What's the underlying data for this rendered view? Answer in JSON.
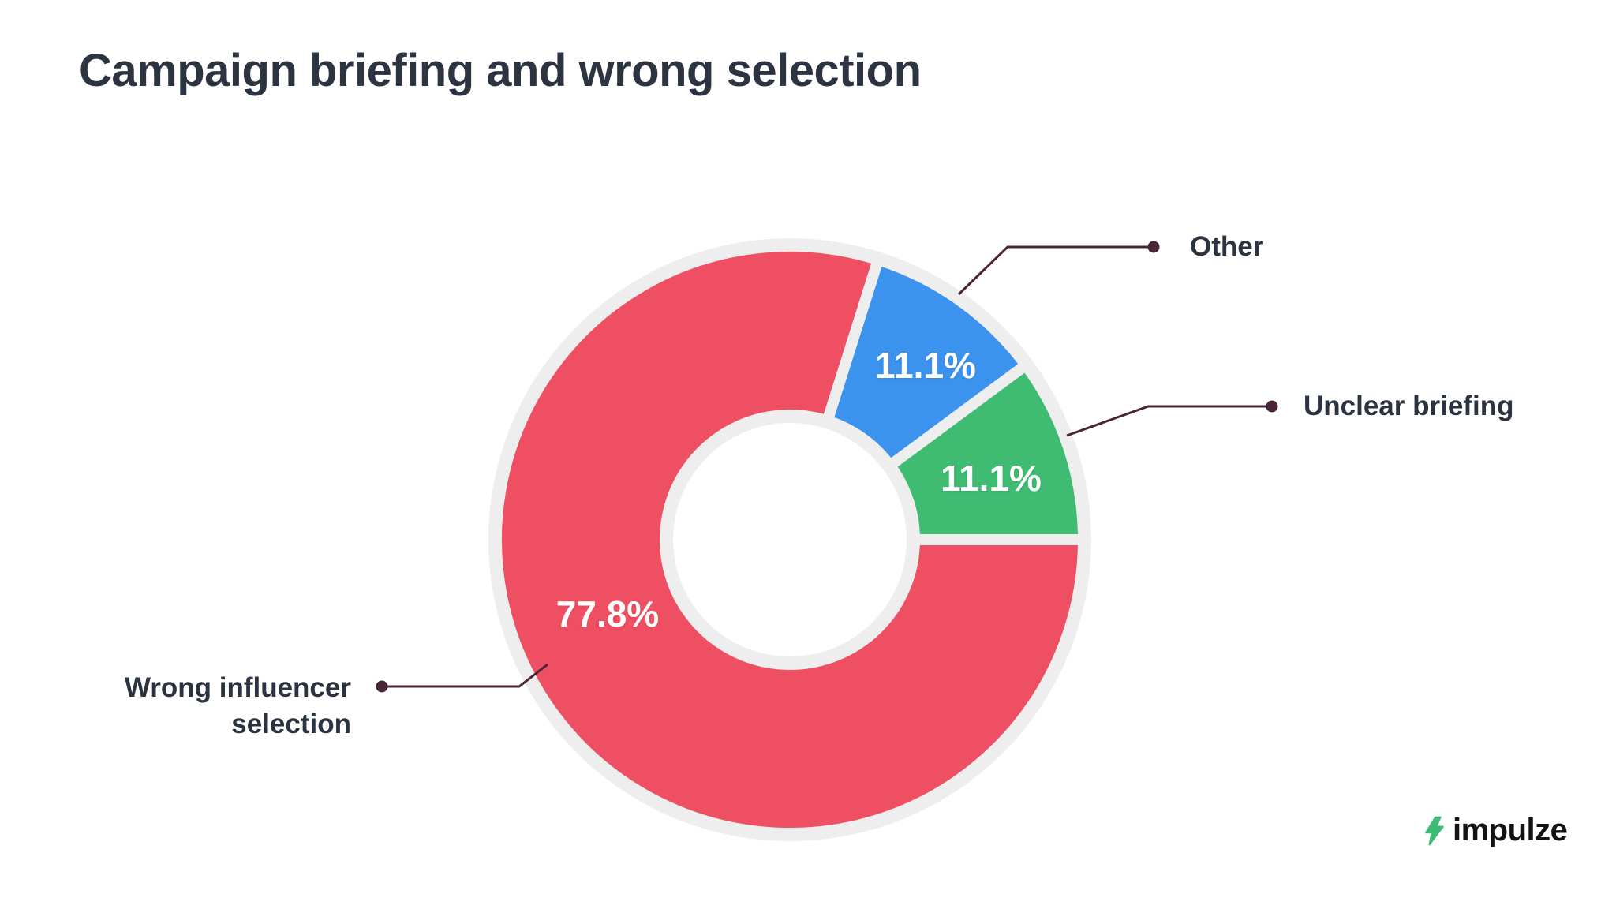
{
  "title": "Campaign briefing and wrong selection",
  "colors": {
    "red": "#ee4f62",
    "blue": "#3b93ee",
    "green": "#3fbb72",
    "plate_gray": "#eeeeee",
    "hole_white": "#ffffff",
    "text_dark": "#2a333f",
    "leader_line": "#4a2539",
    "logo_bolt_green": "#3dba74",
    "logo_text": "#131313",
    "background": "#ffffff"
  },
  "chart_data": {
    "type": "pie",
    "subtype": "donut",
    "title": "Campaign briefing and wrong selection",
    "categories": [
      "Other",
      "Unclear briefing",
      "Wrong influencer selection"
    ],
    "values": [
      11.1,
      11.1,
      77.8
    ],
    "unit": "%",
    "total": 100,
    "legend_position": "external-callouts",
    "grid": false,
    "slices": [
      {
        "label": "Other",
        "value": 11.1,
        "display_value": "11.1%",
        "color": "#3b93ee"
      },
      {
        "label": "Unclear briefing",
        "value": 11.1,
        "display_value": "11.1%",
        "color": "#3fbb72"
      },
      {
        "label": "Wrong influencer selection",
        "value": 77.8,
        "display_value": "77.8%",
        "color": "#ee4f62"
      }
    ]
  },
  "callouts": [
    {
      "label": "Other"
    },
    {
      "label": "Unclear briefing"
    },
    {
      "label": "Wrong influencer\nselection"
    }
  ],
  "brand": {
    "name": "impulze",
    "icon": "lightning-bolt-icon"
  }
}
